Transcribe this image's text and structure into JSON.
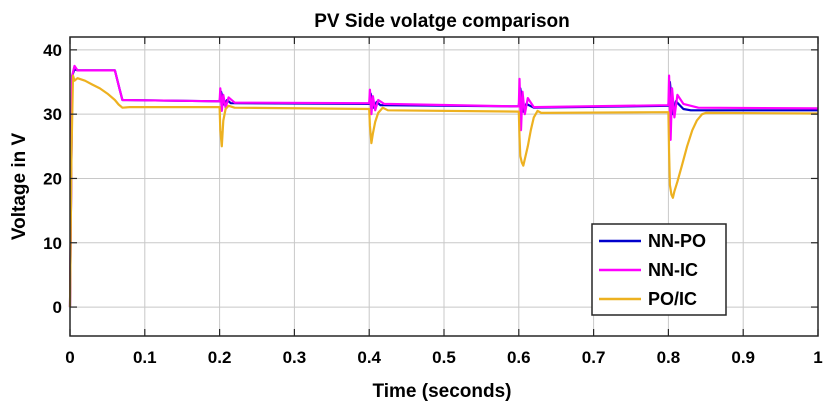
{
  "chart_data": {
    "type": "line",
    "title": "PV Side volatge comparison",
    "xlabel": "Time (seconds)",
    "ylabel": "Voltage in V",
    "xlim": [
      0,
      1
    ],
    "ylim": [
      -4.5,
      42
    ],
    "grid": true,
    "legend_position": "bottom-right",
    "x_ticks": [
      0,
      0.1,
      0.2,
      0.3,
      0.4,
      0.5,
      0.6,
      0.7,
      0.8,
      0.9,
      1
    ],
    "x_tick_labels": [
      "0",
      "0.1",
      "0.2",
      "0.3",
      "0.4",
      "0.5",
      "0.6",
      "0.7",
      "0.8",
      "0.9",
      "1"
    ],
    "y_ticks": [
      0,
      10,
      20,
      30,
      40
    ],
    "y_tick_labels": [
      "0",
      "10",
      "20",
      "30",
      "40"
    ],
    "series": [
      {
        "name": "NN-PO",
        "color": "#0000cc",
        "x": [
          0,
          0.003,
          0.006,
          0.01,
          0.06,
          0.066,
          0.07,
          0.2,
          0.202,
          0.206,
          0.21,
          0.215,
          0.4,
          0.402,
          0.406,
          0.41,
          0.415,
          0.6,
          0.602,
          0.606,
          0.61,
          0.62,
          0.8,
          0.802,
          0.806,
          0.81,
          0.82,
          0.83,
          1.0
        ],
        "y": [
          0,
          36,
          37,
          36.8,
          36.8,
          34,
          32.2,
          32.0,
          33.5,
          31.5,
          32.2,
          31.7,
          31.6,
          33.2,
          31.0,
          31.9,
          31.4,
          31.2,
          34.0,
          30.4,
          31.6,
          31.0,
          31.3,
          35.0,
          30.0,
          32.0,
          30.8,
          30.6,
          30.6
        ]
      },
      {
        "name": "NN-IC",
        "color": "#ff00ff",
        "x": [
          0,
          0.003,
          0.006,
          0.01,
          0.06,
          0.066,
          0.07,
          0.2,
          0.201,
          0.203,
          0.205,
          0.208,
          0.212,
          0.22,
          0.4,
          0.401,
          0.403,
          0.405,
          0.408,
          0.412,
          0.42,
          0.6,
          0.601,
          0.603,
          0.605,
          0.608,
          0.612,
          0.62,
          0.8,
          0.801,
          0.803,
          0.805,
          0.808,
          0.812,
          0.82,
          0.84,
          1.0
        ],
        "y": [
          0,
          36,
          37.5,
          36.8,
          36.8,
          34,
          32.2,
          32.0,
          34.0,
          30.5,
          33.0,
          31.0,
          32.6,
          31.8,
          31.7,
          33.8,
          30.0,
          32.8,
          30.6,
          32.2,
          31.6,
          31.2,
          35.5,
          27.5,
          33.5,
          30.0,
          32.5,
          31.1,
          31.4,
          36.0,
          26.0,
          34.0,
          29.5,
          33.0,
          31.6,
          31.0,
          30.9
        ]
      },
      {
        "name": "PO/IC",
        "color": "#edb120",
        "x": [
          0,
          0.002,
          0.004,
          0.006,
          0.01,
          0.02,
          0.03,
          0.04,
          0.05,
          0.06,
          0.065,
          0.07,
          0.08,
          0.2,
          0.201,
          0.203,
          0.205,
          0.208,
          0.212,
          0.22,
          0.4,
          0.401,
          0.403,
          0.405,
          0.408,
          0.412,
          0.418,
          0.425,
          0.6,
          0.601,
          0.602,
          0.604,
          0.606,
          0.608,
          0.612,
          0.616,
          0.62,
          0.625,
          0.63,
          0.8,
          0.801,
          0.802,
          0.804,
          0.806,
          0.808,
          0.812,
          0.818,
          0.825,
          0.832,
          0.838,
          0.845,
          0.85,
          1.0
        ],
        "y": [
          0,
          24,
          36,
          35.2,
          35.6,
          35.2,
          34.6,
          34.0,
          33.2,
          32.2,
          31.5,
          31.0,
          31.1,
          31.1,
          27.5,
          25.0,
          29.0,
          30.8,
          31.3,
          31.0,
          30.8,
          28.2,
          25.5,
          27.0,
          28.8,
          30.2,
          31.0,
          30.6,
          30.4,
          26.5,
          23.5,
          22.5,
          22.0,
          23.0,
          25.0,
          27.5,
          29.5,
          30.5,
          30.2,
          30.3,
          24.0,
          19.0,
          17.5,
          17.0,
          18.0,
          19.5,
          22.0,
          25.0,
          27.5,
          29.0,
          30.0,
          30.2,
          30.1
        ]
      }
    ]
  }
}
